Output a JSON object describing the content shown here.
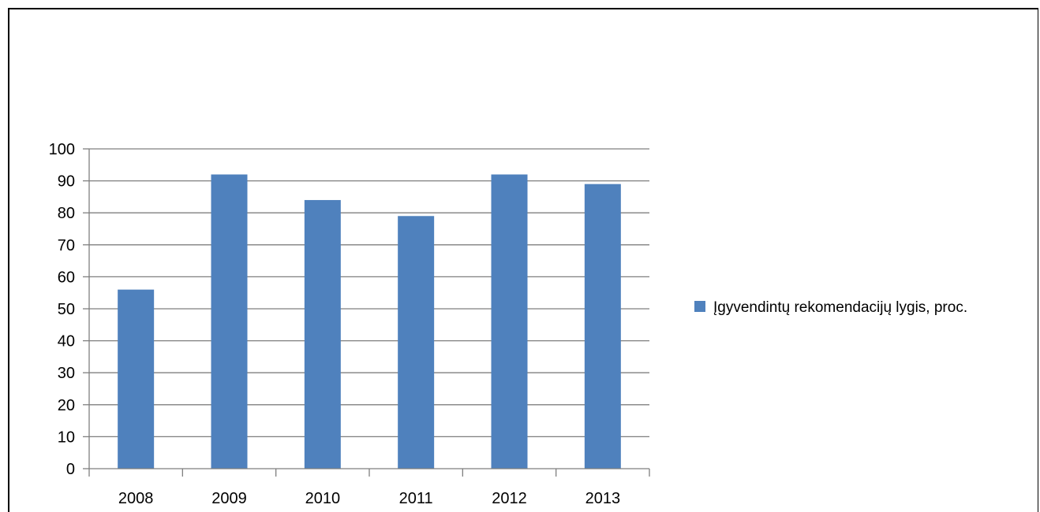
{
  "chart_data": {
    "type": "bar",
    "categories": [
      "2008",
      "2009",
      "2010",
      "2011",
      "2012",
      "2013"
    ],
    "series": [
      {
        "name": "Įgyvendintų rekomendacijų lygis, proc.",
        "values": [
          56,
          92,
          84,
          79,
          92,
          89
        ],
        "color": "#4f81bd"
      }
    ],
    "title": "",
    "xlabel": "",
    "ylabel": "",
    "ylim": [
      0,
      100
    ],
    "yticks": [
      "0",
      "10",
      "20",
      "30",
      "40",
      "50",
      "60",
      "70",
      "80",
      "90",
      "100"
    ],
    "grid": true,
    "legend_position": "right"
  }
}
